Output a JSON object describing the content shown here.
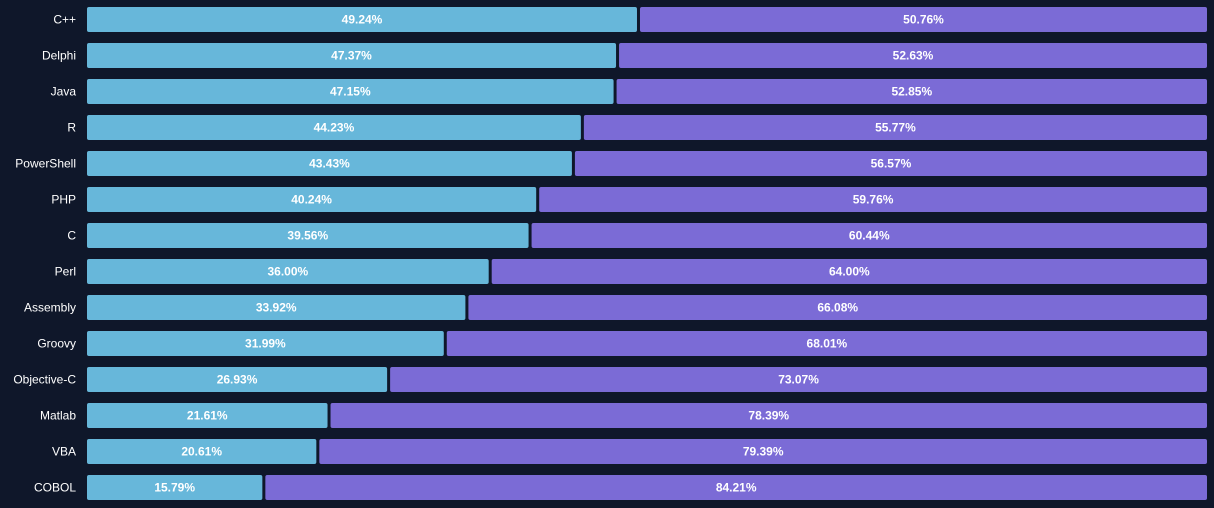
{
  "chart_data": {
    "type": "bar",
    "orientation": "horizontal",
    "stacked": true,
    "normalized_percent": true,
    "categories": [
      "C++",
      "Delphi",
      "Java",
      "R",
      "PowerShell",
      "PHP",
      "C",
      "Perl",
      "Assembly",
      "Groovy",
      "Objective-C",
      "Matlab",
      "VBA",
      "COBOL"
    ],
    "series": [
      {
        "name": "series-1",
        "color": "#67b7da",
        "values": [
          49.24,
          47.37,
          47.15,
          44.23,
          43.43,
          40.24,
          39.56,
          36.0,
          33.92,
          31.99,
          26.93,
          21.61,
          20.61,
          15.79
        ],
        "labels": [
          "49.24%",
          "47.37%",
          "47.15%",
          "44.23%",
          "43.43%",
          "40.24%",
          "39.56%",
          "36.00%",
          "33.92%",
          "31.99%",
          "26.93%",
          "21.61%",
          "20.61%",
          "15.79%"
        ]
      },
      {
        "name": "series-2",
        "color": "#7b6bd6",
        "values": [
          50.76,
          52.63,
          52.85,
          55.77,
          56.57,
          59.76,
          60.44,
          64.0,
          66.08,
          68.01,
          73.07,
          78.39,
          79.39,
          84.21
        ],
        "labels": [
          "50.76%",
          "52.63%",
          "52.85%",
          "55.77%",
          "56.57%",
          "59.76%",
          "60.44%",
          "64.00%",
          "66.08%",
          "68.01%",
          "73.07%",
          "78.39%",
          "79.39%",
          "84.21%"
        ]
      }
    ],
    "xlim": [
      0,
      100
    ],
    "title": "",
    "xlabel": "",
    "ylabel": "",
    "background": "#0f172a"
  }
}
